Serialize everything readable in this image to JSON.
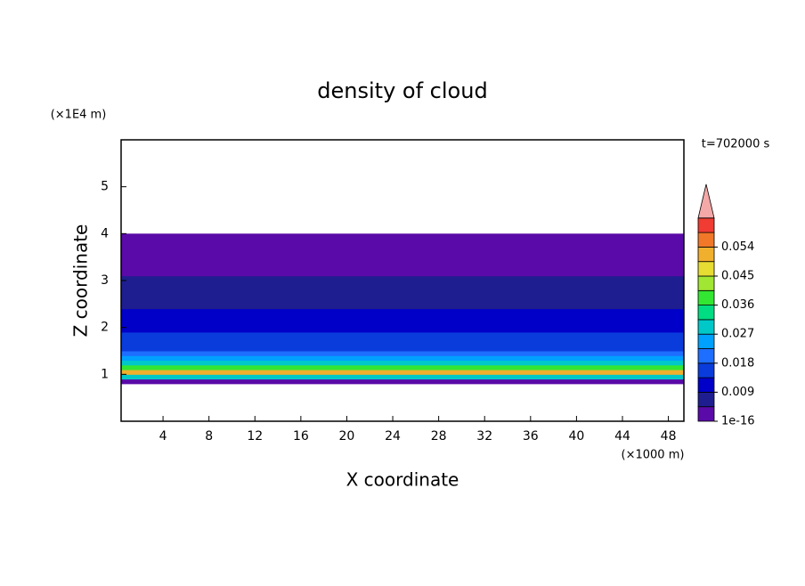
{
  "chart_data": {
    "type": "contour-profile",
    "title": "density of cloud",
    "x_label": "X coordinate",
    "y_label": "Z coordinate",
    "x_unit": "(×1000 m)",
    "y_unit": "(×1E4 m)",
    "annotation": "t=702000 s",
    "xlim": [
      0.35,
      49.35
    ],
    "xticks": [
      4,
      8,
      12,
      16,
      20,
      24,
      28,
      32,
      36,
      40,
      44,
      48
    ],
    "ylim": [
      0,
      6
    ],
    "yticks": [
      1,
      2,
      3,
      4,
      5
    ],
    "z_edges": [
      0.8,
      0.9,
      1.0,
      1.1,
      1.2,
      1.3,
      1.4,
      1.5,
      1.6,
      1.7,
      1.8,
      1.9,
      2.0,
      2.1,
      2.2,
      2.3,
      2.4,
      2.5,
      2.6,
      2.7,
      2.8,
      2.9,
      3.0,
      3.1,
      3.2,
      3.3,
      3.4,
      3.5,
      3.6,
      3.7,
      3.8,
      3.9,
      4.0
    ],
    "values": [
      0.003,
      0.03,
      0.052,
      0.038,
      0.028,
      0.024,
      0.02,
      0.017,
      0.016,
      0.015,
      0.014,
      0.013,
      0.012,
      0.011,
      0.01,
      0.009,
      0.008,
      0.008,
      0.007,
      0.006,
      0.006,
      0.005,
      0.005,
      0.004,
      0.004,
      0.003,
      0.003,
      0.003,
      0.002,
      0.002,
      0.002,
      0.002
    ],
    "colorbar": {
      "levels": [
        1e-16,
        0.0045,
        0.009,
        0.0135,
        0.018,
        0.0225,
        0.027,
        0.0315,
        0.036,
        0.0405,
        0.045,
        0.0495,
        0.054,
        0.0585,
        0.063
      ],
      "colors": [
        "#5a0aa8",
        "#1e1e90",
        "#0000c8",
        "#0a3cdc",
        "#1e6eff",
        "#00a0ff",
        "#00c8c8",
        "#00dc82",
        "#32e632",
        "#a0e632",
        "#e6dc32",
        "#f0af2d",
        "#f07828",
        "#f03c32"
      ],
      "extend_color": "#f4a8a8",
      "ticks": [
        {
          "value": 1e-16,
          "label": "1e-16"
        },
        0.009,
        0.018,
        0.027,
        0.036,
        0.045,
        0.054
      ]
    }
  }
}
